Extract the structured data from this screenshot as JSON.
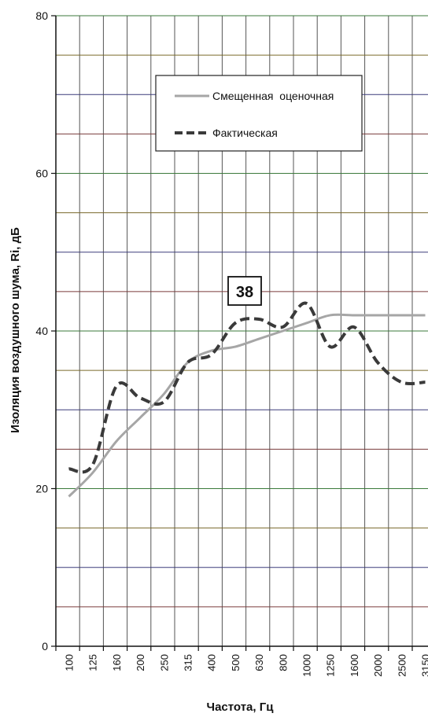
{
  "chart_data": {
    "type": "line",
    "categories": [
      "100",
      "125",
      "160",
      "200",
      "250",
      "315",
      "400",
      "500",
      "630",
      "800",
      "1000",
      "1250",
      "1600",
      "2000",
      "2500",
      "3150"
    ],
    "xlabel": "Частота, Гц",
    "ylabel": "Изоляция воздушного шума, Ri, дБ",
    "ylim": [
      0,
      80
    ],
    "yticks": [
      0,
      20,
      40,
      60,
      80
    ],
    "grid": true,
    "legend_position": "top-center",
    "series": [
      {
        "name": "Смещенная  оценочная",
        "style": "solid",
        "color": "#a6a6a6",
        "values": [
          19,
          22,
          26,
          29,
          32,
          36,
          37.5,
          38,
          39,
          40,
          41,
          42,
          42,
          42,
          42,
          42
        ]
      },
      {
        "name": "Фактическая",
        "style": "dashed",
        "color": "#3a3a3a",
        "values": [
          22.5,
          23,
          33,
          31.5,
          31,
          36,
          37,
          41,
          41.5,
          40.5,
          43.5,
          38,
          40.5,
          36,
          33.5,
          33.5
        ]
      }
    ],
    "annotations": [
      {
        "text": "38",
        "x_category": "630",
        "y": 45
      }
    ]
  }
}
